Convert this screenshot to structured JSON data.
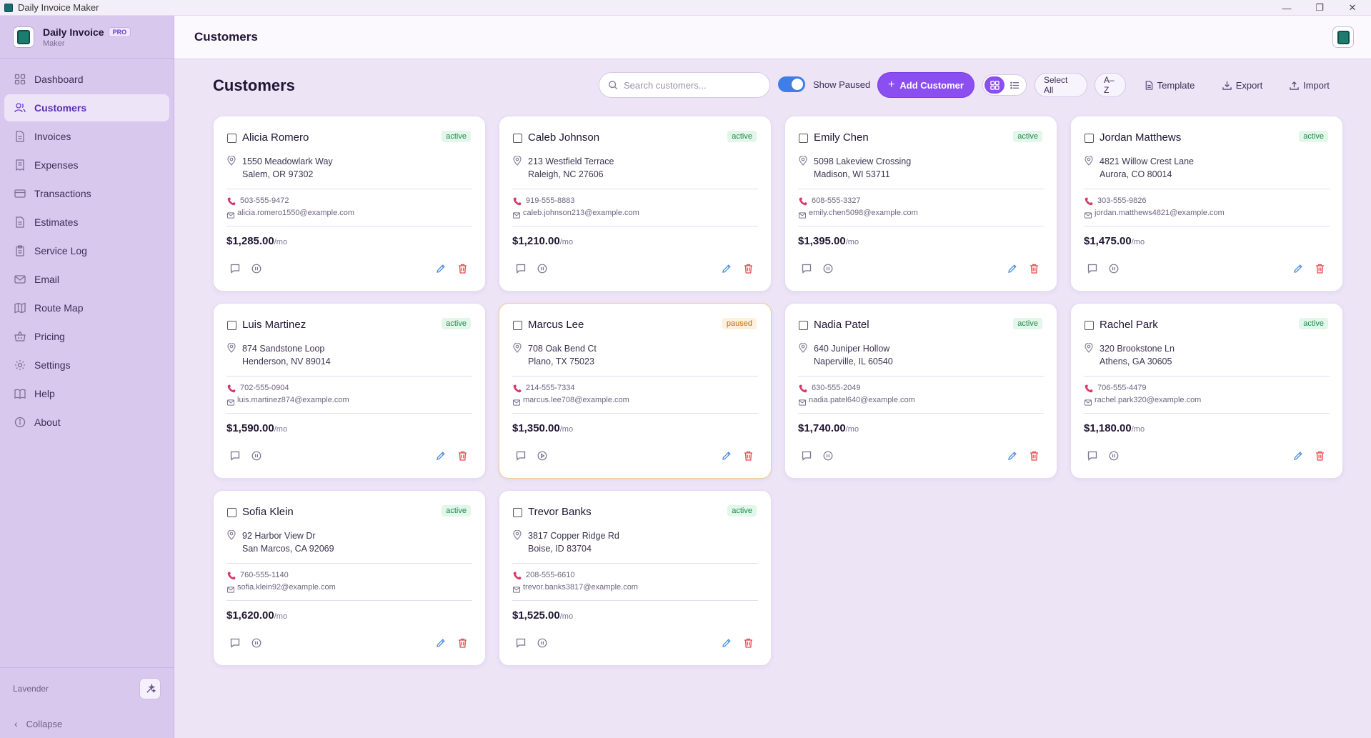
{
  "window": {
    "title": "Daily Invoice Maker"
  },
  "brand": {
    "name": "Daily Invoice",
    "badge": "PRO",
    "subtitle": "Maker"
  },
  "sidebar": {
    "items": [
      {
        "label": "Dashboard",
        "icon": "dashboard-icon"
      },
      {
        "label": "Customers",
        "icon": "users-icon",
        "active": true
      },
      {
        "label": "Invoices",
        "icon": "file-icon"
      },
      {
        "label": "Expenses",
        "icon": "receipt-icon"
      },
      {
        "label": "Transactions",
        "icon": "card-icon"
      },
      {
        "label": "Estimates",
        "icon": "file-icon"
      },
      {
        "label": "Service Log",
        "icon": "clipboard-icon"
      },
      {
        "label": "Email",
        "icon": "mail-icon"
      },
      {
        "label": "Route Map",
        "icon": "map-icon"
      },
      {
        "label": "Pricing",
        "icon": "basket-icon"
      },
      {
        "label": "Settings",
        "icon": "gear-icon"
      },
      {
        "label": "Help",
        "icon": "book-icon"
      },
      {
        "label": "About",
        "icon": "info-icon"
      }
    ],
    "theme_label": "Lavender",
    "collapse_label": "Collapse"
  },
  "header": {
    "title": "Customers"
  },
  "toolbar": {
    "page_title": "Customers",
    "search_placeholder": "Search customers...",
    "show_paused_label": "Show Paused",
    "show_paused": true,
    "add_label": "Add Customer",
    "select_all_label": "Select All",
    "sort_label": "A–Z",
    "template_label": "Template",
    "export_label": "Export",
    "import_label": "Import"
  },
  "price_suffix": "/mo",
  "customers": [
    {
      "name": "Alicia Romero",
      "status": "active",
      "addr1": "1550 Meadowlark Way",
      "addr2": "Salem, OR 97302",
      "phone": "503-555-9472",
      "email": "alicia.romero1550@example.com",
      "price": "$1,285.00"
    },
    {
      "name": "Caleb Johnson",
      "status": "active",
      "addr1": "213 Westfield Terrace",
      "addr2": "Raleigh, NC 27606",
      "phone": "919-555-8883",
      "email": "caleb.johnson213@example.com",
      "price": "$1,210.00"
    },
    {
      "name": "Emily Chen",
      "status": "active",
      "addr1": "5098 Lakeview Crossing",
      "addr2": "Madison, WI 53711",
      "phone": "608-555-3327",
      "email": "emily.chen5098@example.com",
      "price": "$1,395.00"
    },
    {
      "name": "Jordan Matthews",
      "status": "active",
      "addr1": "4821 Willow Crest Lane",
      "addr2": "Aurora, CO 80014",
      "phone": "303-555-9826",
      "email": "jordan.matthews4821@example.com",
      "price": "$1,475.00"
    },
    {
      "name": "Luis Martinez",
      "status": "active",
      "addr1": "874 Sandstone Loop",
      "addr2": "Henderson, NV 89014",
      "phone": "702-555-0904",
      "email": "luis.martinez874@example.com",
      "price": "$1,590.00"
    },
    {
      "name": "Marcus Lee",
      "status": "paused",
      "addr1": "708 Oak Bend Ct",
      "addr2": "Plano, TX 75023",
      "phone": "214-555-7334",
      "email": "marcus.lee708@example.com",
      "price": "$1,350.00"
    },
    {
      "name": "Nadia Patel",
      "status": "active",
      "addr1": "640 Juniper Hollow",
      "addr2": "Naperville, IL 60540",
      "phone": "630-555-2049",
      "email": "nadia.patel640@example.com",
      "price": "$1,740.00"
    },
    {
      "name": "Rachel Park",
      "status": "active",
      "addr1": "320 Brookstone Ln",
      "addr2": "Athens, GA 30605",
      "phone": "706-555-4479",
      "email": "rachel.park320@example.com",
      "price": "$1,180.00"
    },
    {
      "name": "Sofia Klein",
      "status": "active",
      "addr1": "92 Harbor View Dr",
      "addr2": "San Marcos, CA 92069",
      "phone": "760-555-1140",
      "email": "sofia.klein92@example.com",
      "price": "$1,620.00"
    },
    {
      "name": "Trevor Banks",
      "status": "active",
      "addr1": "3817 Copper Ridge Rd",
      "addr2": "Boise, ID 83704",
      "phone": "208-555-6610",
      "email": "trevor.banks3817@example.com",
      "price": "$1,525.00"
    }
  ],
  "colors": {
    "accent": "#8b4ef0",
    "sidebar": "#d8c8ee",
    "background": "#ede4f6",
    "active_badge": "#1f8a4c",
    "paused_badge": "#c06b12",
    "delete": "#e5484d",
    "edit": "#4a8fe0"
  }
}
